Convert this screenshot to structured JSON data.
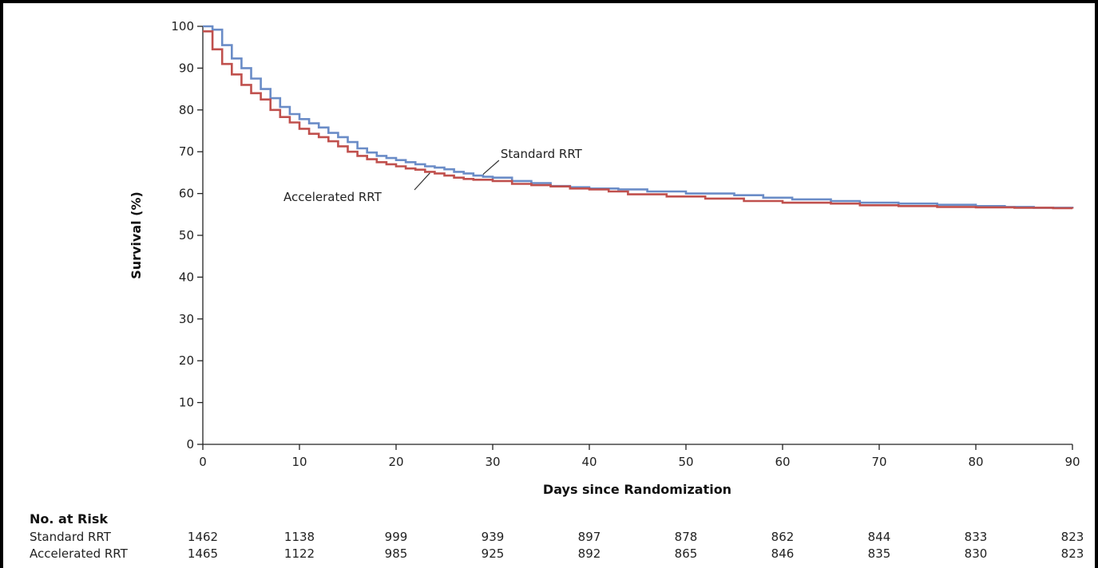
{
  "chart_data": {
    "type": "line",
    "ylabel": "Survival (%)",
    "xlabel": "Days since Randomization",
    "xlim": [
      0,
      90
    ],
    "ylim": [
      0,
      100
    ],
    "x_ticks": [
      0,
      10,
      20,
      30,
      40,
      50,
      60,
      70,
      80,
      90
    ],
    "y_ticks": [
      0,
      10,
      20,
      30,
      40,
      50,
      60,
      70,
      80,
      90,
      100
    ],
    "grid": false,
    "step": true,
    "colors": {
      "standard": "#6a8cc7",
      "accelerated": "#c0504d"
    },
    "series": [
      {
        "name": "Standard RRT",
        "x": [
          0,
          1,
          2,
          3,
          4,
          5,
          6,
          7,
          8,
          9,
          10,
          11,
          12,
          13,
          14,
          15,
          16,
          17,
          18,
          19,
          20,
          21,
          22,
          23,
          24,
          25,
          26,
          27,
          28,
          29,
          30,
          32,
          34,
          36,
          38,
          40,
          43,
          46,
          50,
          55,
          58,
          61,
          65,
          68,
          72,
          76,
          80,
          83,
          86,
          90
        ],
        "y": [
          100,
          99.2,
          95.5,
          92.3,
          90,
          87.5,
          85,
          82.8,
          80.7,
          79,
          77.8,
          76.8,
          75.8,
          74.5,
          73.5,
          72.3,
          70.8,
          69.8,
          69,
          68.5,
          68,
          67.5,
          67,
          66.5,
          66.2,
          65.8,
          65.2,
          64.8,
          64.3,
          64,
          63.8,
          63,
          62.5,
          61.8,
          61.5,
          61.2,
          61,
          60.5,
          60,
          59.6,
          59,
          58.6,
          58.2,
          57.8,
          57.6,
          57.3,
          57,
          56.8,
          56.6,
          56.4
        ]
      },
      {
        "name": "Accelerated RRT",
        "x": [
          0,
          1,
          2,
          3,
          4,
          5,
          6,
          7,
          8,
          9,
          10,
          11,
          12,
          13,
          14,
          15,
          16,
          17,
          18,
          19,
          20,
          21,
          22,
          23,
          24,
          25,
          26,
          27,
          28,
          30,
          32,
          34,
          36,
          38,
          40,
          42,
          44,
          48,
          52,
          56,
          60,
          65,
          68,
          72,
          76,
          80,
          84,
          88,
          90
        ],
        "y": [
          98.8,
          94.5,
          91,
          88.5,
          86,
          84,
          82.5,
          80,
          78.3,
          77,
          75.5,
          74.3,
          73.5,
          72.5,
          71.3,
          70,
          69,
          68.2,
          67.5,
          67,
          66.5,
          66,
          65.7,
          65.2,
          64.8,
          64.3,
          63.8,
          63.5,
          63.3,
          63,
          62.3,
          62,
          61.7,
          61.2,
          61,
          60.5,
          59.8,
          59.3,
          58.8,
          58.2,
          57.8,
          57.6,
          57.2,
          57,
          56.8,
          56.7,
          56.6,
          56.5,
          56.4
        ]
      }
    ],
    "annotations": [
      {
        "text": "Standard RRT",
        "at_x": 29,
        "at_y": 64.2
      },
      {
        "text": "Accelerated RRT",
        "at_x": 23.5,
        "at_y": 65.3
      }
    ],
    "risk_table": {
      "title": "No. at Risk",
      "times": [
        0,
        10,
        20,
        30,
        40,
        50,
        60,
        70,
        80,
        90
      ],
      "rows": [
        {
          "label": "Standard RRT",
          "values": [
            "1462",
            "1138",
            "999",
            "939",
            "897",
            "878",
            "862",
            "844",
            "833",
            "823"
          ]
        },
        {
          "label": "Accelerated RRT",
          "values": [
            "1465",
            "1122",
            "985",
            "925",
            "892",
            "865",
            "846",
            "835",
            "830",
            "823"
          ]
        }
      ]
    }
  }
}
